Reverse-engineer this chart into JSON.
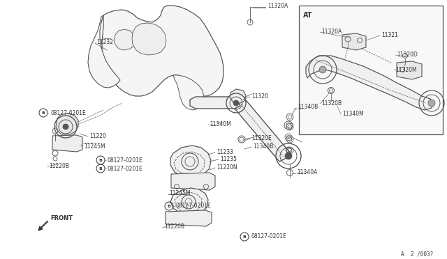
{
  "bg_color": "#ffffff",
  "line_color": "#555555",
  "text_color": "#333333",
  "fig_width": 6.4,
  "fig_height": 3.72,
  "dpi": 100,
  "footer_text": "A  2 /003?",
  "inset_label": "AT",
  "front_label": "FRONT"
}
